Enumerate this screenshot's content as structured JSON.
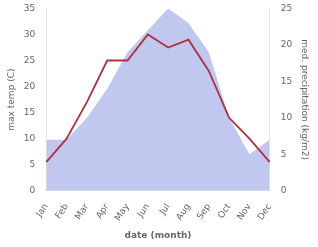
{
  "chart_data": {
    "type": "line",
    "categories": [
      "Jan",
      "Feb",
      "Mar",
      "Apr",
      "May",
      "Jun",
      "Jul",
      "Aug",
      "Sep",
      "Oct",
      "Nov",
      "Dec"
    ],
    "series": [
      {
        "type": "area",
        "axis": "y2",
        "color": "#c0c8f0",
        "values": [
          7,
          7,
          10,
          14,
          19,
          22,
          25,
          23,
          19,
          10,
          5,
          7
        ]
      },
      {
        "type": "line",
        "color": "#b03040",
        "values": [
          5.5,
          10.0,
          17.0,
          25.0,
          25.0,
          30.0,
          27.5,
          29.0,
          23.0,
          14.0,
          10.0,
          5.5
        ]
      }
    ],
    "xlabel": "date (month)",
    "ylabel": "max temp (C)",
    "y2label": "med. precipitation (kg/m2)",
    "ylim": [
      0,
      35
    ],
    "yticks": [
      0,
      5,
      10,
      15,
      20,
      25,
      30,
      35
    ],
    "y2lim": [
      0,
      25
    ],
    "y2ticks": [
      0,
      5,
      10,
      15,
      20,
      25
    ],
    "grid": false
  }
}
